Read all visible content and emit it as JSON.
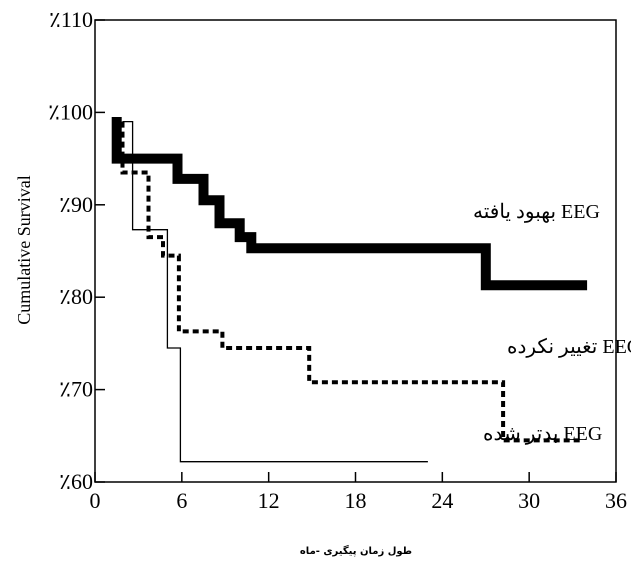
{
  "chart_data": {
    "type": "line",
    "subtype": "step (Kaplan-Meier)",
    "title": "",
    "xlabel": "طول زمان پیگیری -ماه",
    "ylabel": "Cumulative Survival",
    "xlim": [
      0,
      36
    ],
    "ylim": [
      60,
      110
    ],
    "xticks": [
      0,
      6,
      12,
      18,
      24,
      30,
      36
    ],
    "yticks": [
      {
        "value": 110,
        "label": "٪110"
      },
      {
        "value": 100,
        "label": "٪100"
      },
      {
        "value": 90,
        "label": "٪90"
      },
      {
        "value": 80,
        "label": "٪80"
      },
      {
        "value": 70,
        "label": "٪70"
      },
      {
        "value": 60,
        "label": "٪60"
      }
    ],
    "grid": false,
    "series": [
      {
        "name": "EEG بهبود یافته",
        "style": "thick-solid",
        "color": "#000000",
        "x": [
          1.5,
          1.5,
          5.7,
          5.7,
          7.5,
          7.5,
          8.6,
          8.6,
          10.0,
          10.0,
          10.8,
          10.8,
          27.0,
          27.0,
          34.0
        ],
        "y": [
          99.5,
          95.0,
          95.0,
          92.8,
          92.8,
          90.5,
          90.5,
          88.0,
          88.0,
          86.5,
          86.5,
          85.3,
          85.3,
          81.3,
          81.3
        ]
      },
      {
        "name": "EEG تغییر نکرده",
        "style": "dotted",
        "color": "#000000",
        "x": [
          1.9,
          1.9,
          3.7,
          3.7,
          4.7,
          4.7,
          5.8,
          5.8,
          8.8,
          8.8,
          14.8,
          14.8,
          28.2,
          28.2,
          33.5
        ],
        "y": [
          99.0,
          93.5,
          93.5,
          86.5,
          86.5,
          84.5,
          84.5,
          76.3,
          76.3,
          74.5,
          74.5,
          70.8,
          70.8,
          64.5,
          64.5
        ]
      },
      {
        "name": "EEG بدتر شده",
        "style": "thin-solid",
        "color": "#000000",
        "x": [
          1.9,
          1.9,
          2.6,
          2.6,
          5.0,
          5.0,
          5.9,
          5.9,
          23.0
        ],
        "y": [
          99.0,
          99.0,
          99.0,
          87.3,
          87.3,
          74.5,
          74.5,
          62.2,
          62.2
        ]
      }
    ]
  }
}
